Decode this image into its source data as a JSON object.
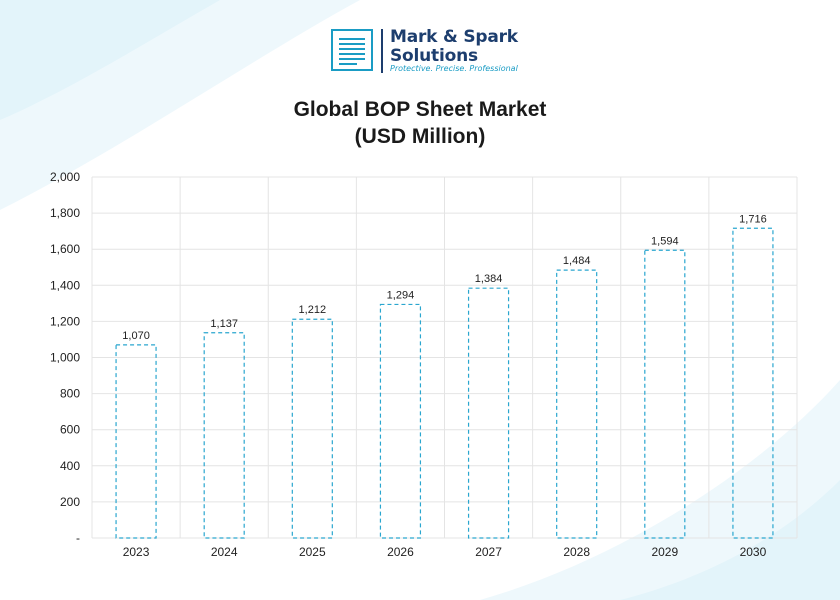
{
  "logo": {
    "name_line1": "Mark & Spark",
    "name_line2": "Solutions",
    "tagline": "Protective. Precise. Professional",
    "colors": {
      "primary": "#1a9cc4",
      "text": "#1d3e6e"
    }
  },
  "chart_data": {
    "type": "bar",
    "title": "Global BOP Sheet Market",
    "subtitle": "(USD Million)",
    "categories": [
      "2023",
      "2024",
      "2025",
      "2026",
      "2027",
      "2028",
      "2029",
      "2030"
    ],
    "values": [
      1070,
      1137,
      1212,
      1294,
      1384,
      1484,
      1594,
      1716
    ],
    "value_labels": [
      "1,070",
      "1,137",
      "1,212",
      "1,294",
      "1,384",
      "1,484",
      "1,594",
      "1,716"
    ],
    "yticks": [
      "-",
      "200",
      "400",
      "600",
      "800",
      "1,000",
      "1,200",
      "1,400",
      "1,600",
      "1,800",
      "2,000"
    ],
    "ylim": [
      0,
      2000
    ],
    "xlabel": "",
    "ylabel": "",
    "grid": true,
    "bar_style": "dashed outline",
    "bar_color": "#2aa6cf"
  }
}
